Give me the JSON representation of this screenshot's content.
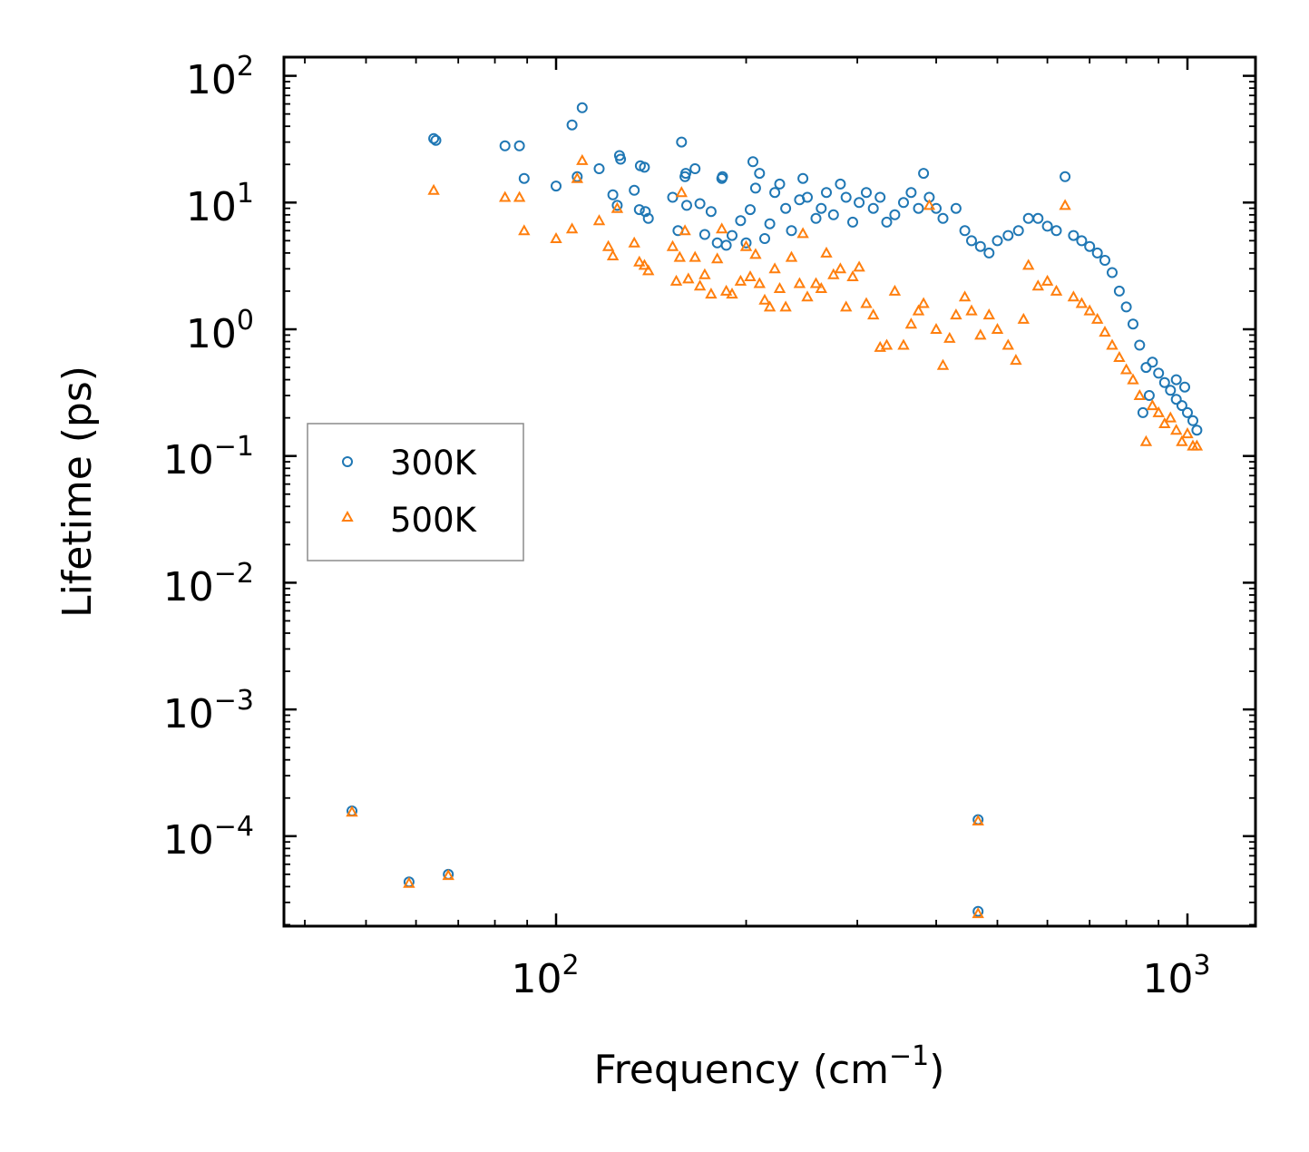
{
  "chart_data": {
    "type": "scatter",
    "title": "",
    "xlabel": "Frequency (cm",
    "xlabel_sup": "−1",
    "xlabel_close": ")",
    "ylabel": "Lifetime (ps)",
    "xscale": "log",
    "yscale": "log",
    "xlim": [
      40,
      1250
    ],
    "ylim": [
      2e-05,
      130
    ],
    "legend_position": "center-left",
    "x_ticks": [
      {
        "base": "10",
        "exp": "2",
        "value": 100
      },
      {
        "base": "10",
        "exp": "3",
        "value": 1000
      }
    ],
    "y_ticks": [
      {
        "base": "10",
        "exp": "2",
        "value": 100
      },
      {
        "base": "10",
        "exp": "1",
        "value": 10
      },
      {
        "base": "10",
        "exp": "0",
        "value": 1
      },
      {
        "base": "10",
        "exp": "−1",
        "value": 0.1
      },
      {
        "base": "10",
        "exp": "−2",
        "value": 0.01
      },
      {
        "base": "10",
        "exp": "−3",
        "value": 0.001
      },
      {
        "base": "10",
        "exp": "−4",
        "value": 0.0001
      }
    ],
    "series": [
      {
        "name": "300K",
        "marker": "circle",
        "color": "#1f77b4",
        "points": [
          [
            47.5,
            0.000158
          ],
          [
            58.5,
            4.35e-05
          ],
          [
            67.5,
            5e-05
          ],
          [
            466,
            0.000135
          ],
          [
            466,
            2.55e-05
          ],
          [
            64,
            32
          ],
          [
            64.5,
            31
          ],
          [
            83,
            28
          ],
          [
            87.5,
            28
          ],
          [
            89,
            15.5
          ],
          [
            100,
            13.5
          ],
          [
            106,
            41
          ],
          [
            108,
            16
          ],
          [
            110,
            56
          ],
          [
            117,
            18.5
          ],
          [
            123,
            11.5
          ],
          [
            125,
            9.5
          ],
          [
            126,
            23.5
          ],
          [
            126.5,
            22
          ],
          [
            133,
            12.5
          ],
          [
            135.5,
            8.8
          ],
          [
            136,
            19.5
          ],
          [
            138,
            19
          ],
          [
            138.5,
            8.5
          ],
          [
            140,
            7.5
          ],
          [
            153,
            11
          ],
          [
            156,
            6
          ],
          [
            158,
            30
          ],
          [
            160,
            16
          ],
          [
            160.5,
            17
          ],
          [
            161,
            9.5
          ],
          [
            166,
            18.5
          ],
          [
            169,
            9.8
          ],
          [
            172,
            5.6
          ],
          [
            176,
            8.5
          ],
          [
            180,
            4.8
          ],
          [
            183,
            15.5
          ],
          [
            183.5,
            16
          ],
          [
            186,
            4.6
          ],
          [
            190,
            5.5
          ],
          [
            196,
            7.2
          ],
          [
            200,
            4.8
          ],
          [
            203,
            8.8
          ],
          [
            205,
            21
          ],
          [
            207,
            13
          ],
          [
            210,
            17
          ],
          [
            214,
            5.2
          ],
          [
            218,
            6.8
          ],
          [
            222,
            12
          ],
          [
            226,
            14
          ],
          [
            231,
            9
          ],
          [
            236,
            6
          ],
          [
            243,
            10.5
          ],
          [
            246,
            15.5
          ],
          [
            250,
            11
          ],
          [
            258,
            7.5
          ],
          [
            263,
            9
          ],
          [
            268,
            12
          ],
          [
            275,
            8
          ],
          [
            282,
            14
          ],
          [
            288,
            11
          ],
          [
            295,
            7
          ],
          [
            302,
            10
          ],
          [
            310,
            12
          ],
          [
            318,
            9
          ],
          [
            326,
            11
          ],
          [
            334,
            7
          ],
          [
            344,
            8
          ],
          [
            355,
            10
          ],
          [
            365,
            12
          ],
          [
            375,
            9
          ],
          [
            382,
            17
          ],
          [
            390,
            11
          ],
          [
            400,
            9
          ],
          [
            410,
            7.5
          ],
          [
            430,
            9
          ],
          [
            444,
            6
          ],
          [
            455,
            5
          ],
          [
            470,
            4.5
          ],
          [
            485,
            4
          ],
          [
            500,
            5
          ],
          [
            520,
            5.5
          ],
          [
            540,
            6
          ],
          [
            560,
            7.5
          ],
          [
            580,
            7.5
          ],
          [
            600,
            6.5
          ],
          [
            620,
            6
          ],
          [
            640,
            16
          ],
          [
            660,
            5.5
          ],
          [
            680,
            5
          ],
          [
            700,
            4.5
          ],
          [
            720,
            4
          ],
          [
            740,
            3.5
          ],
          [
            760,
            2.8
          ],
          [
            780,
            2
          ],
          [
            800,
            1.5
          ],
          [
            820,
            1.1
          ],
          [
            840,
            0.75
          ],
          [
            860,
            0.5
          ],
          [
            880,
            0.55
          ],
          [
            900,
            0.45
          ],
          [
            920,
            0.38
          ],
          [
            940,
            0.33
          ],
          [
            960,
            0.28
          ],
          [
            980,
            0.25
          ],
          [
            1000,
            0.22
          ],
          [
            1020,
            0.19
          ],
          [
            1035,
            0.16
          ],
          [
            850,
            0.22
          ],
          [
            870,
            0.3
          ],
          [
            960,
            0.4
          ],
          [
            990,
            0.35
          ]
        ]
      },
      {
        "name": "500K",
        "marker": "triangle",
        "color": "#ff7f0e",
        "points": [
          [
            47.5,
            0.000155
          ],
          [
            58.5,
            4.25e-05
          ],
          [
            67.5,
            4.9e-05
          ],
          [
            466,
            0.000132
          ],
          [
            466,
            2.45e-05
          ],
          [
            64,
            12.5
          ],
          [
            83,
            11
          ],
          [
            87.5,
            11
          ],
          [
            89,
            6
          ],
          [
            100,
            5.2
          ],
          [
            106,
            6.2
          ],
          [
            108,
            15.5
          ],
          [
            110,
            21.5
          ],
          [
            117,
            7.2
          ],
          [
            121,
            4.5
          ],
          [
            123,
            3.8
          ],
          [
            125,
            9
          ],
          [
            133,
            4.8
          ],
          [
            135.5,
            3.4
          ],
          [
            138,
            3.2
          ],
          [
            140,
            2.9
          ],
          [
            153,
            4.5
          ],
          [
            155,
            2.4
          ],
          [
            157,
            3.7
          ],
          [
            158,
            12
          ],
          [
            160,
            6
          ],
          [
            162,
            2.5
          ],
          [
            166,
            3.7
          ],
          [
            169,
            2.2
          ],
          [
            172,
            2.7
          ],
          [
            176,
            1.9
          ],
          [
            180,
            3.6
          ],
          [
            183,
            6.2
          ],
          [
            186,
            2
          ],
          [
            190,
            1.9
          ],
          [
            196,
            2.4
          ],
          [
            200,
            4.5
          ],
          [
            203,
            2.6
          ],
          [
            207,
            3.9
          ],
          [
            210,
            2.3
          ],
          [
            214,
            1.7
          ],
          [
            218,
            1.5
          ],
          [
            222,
            3
          ],
          [
            226,
            2.1
          ],
          [
            231,
            1.5
          ],
          [
            236,
            3.7
          ],
          [
            243,
            2.3
          ],
          [
            246,
            5.7
          ],
          [
            250,
            1.8
          ],
          [
            258,
            2.3
          ],
          [
            263,
            2.1
          ],
          [
            268,
            4
          ],
          [
            275,
            2.7
          ],
          [
            282,
            3
          ],
          [
            288,
            1.5
          ],
          [
            295,
            2.6
          ],
          [
            302,
            3.1
          ],
          [
            310,
            1.6
          ],
          [
            318,
            1.3
          ],
          [
            326,
            0.72
          ],
          [
            334,
            0.75
          ],
          [
            344,
            2
          ],
          [
            355,
            0.75
          ],
          [
            365,
            1.1
          ],
          [
            375,
            1.4
          ],
          [
            382,
            1.6
          ],
          [
            390,
            9.5
          ],
          [
            400,
            1
          ],
          [
            410,
            0.52
          ],
          [
            420,
            0.85
          ],
          [
            430,
            1.3
          ],
          [
            444,
            1.8
          ],
          [
            455,
            1.4
          ],
          [
            470,
            0.9
          ],
          [
            485,
            1.3
          ],
          [
            500,
            1
          ],
          [
            520,
            0.75
          ],
          [
            535,
            0.57
          ],
          [
            550,
            1.2
          ],
          [
            560,
            3.2
          ],
          [
            580,
            2.2
          ],
          [
            600,
            2.4
          ],
          [
            620,
            2
          ],
          [
            640,
            9.5
          ],
          [
            660,
            1.8
          ],
          [
            680,
            1.6
          ],
          [
            700,
            1.4
          ],
          [
            720,
            1.2
          ],
          [
            740,
            0.95
          ],
          [
            760,
            0.75
          ],
          [
            780,
            0.6
          ],
          [
            800,
            0.48
          ],
          [
            820,
            0.4
          ],
          [
            840,
            0.3
          ],
          [
            860,
            0.13
          ],
          [
            880,
            0.25
          ],
          [
            900,
            0.22
          ],
          [
            920,
            0.18
          ],
          [
            940,
            0.2
          ],
          [
            960,
            0.16
          ],
          [
            980,
            0.13
          ],
          [
            1000,
            0.15
          ],
          [
            1020,
            0.12
          ],
          [
            1035,
            0.12
          ]
        ]
      }
    ]
  }
}
